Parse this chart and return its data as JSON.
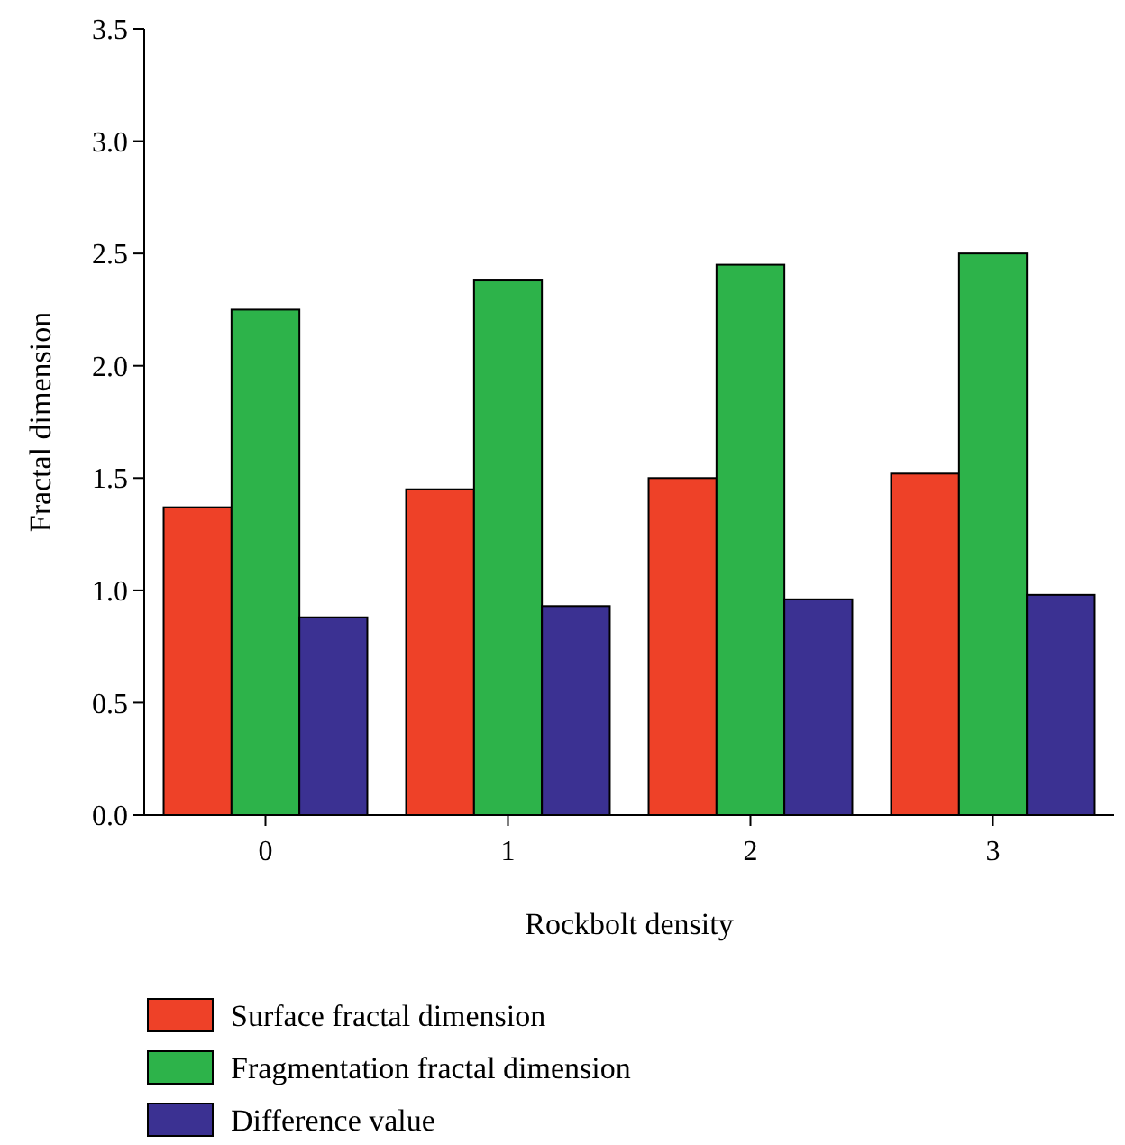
{
  "chart_data": {
    "type": "bar",
    "xlabel": "Rockbolt density",
    "ylabel": "Fractal dimension",
    "categories": [
      "0",
      "1",
      "2",
      "3"
    ],
    "series": [
      {
        "name": "Surface fractal dimension",
        "color": "#ee4128",
        "values": [
          1.37,
          1.45,
          1.5,
          1.52
        ]
      },
      {
        "name": "Fragmentation fractal dimension",
        "color": "#2db34a",
        "values": [
          2.25,
          2.38,
          2.45,
          2.5
        ]
      },
      {
        "name": "Difference value",
        "color": "#3b3192",
        "values": [
          0.88,
          0.93,
          0.96,
          0.98
        ]
      }
    ],
    "ylim": [
      0,
      3.5
    ],
    "yticks": [
      {
        "value": 0,
        "label": "0.0"
      },
      {
        "value": 0.5,
        "label": "0.5"
      },
      {
        "value": 1,
        "label": "1.0"
      },
      {
        "value": 1.5,
        "label": "1.5"
      },
      {
        "value": 2,
        "label": "2.0"
      },
      {
        "value": 2.5,
        "label": "2.5"
      },
      {
        "value": 3,
        "label": "3.0"
      },
      {
        "value": 3.5,
        "label": "3.5"
      }
    ],
    "grid": false,
    "legend": "bottom"
  }
}
